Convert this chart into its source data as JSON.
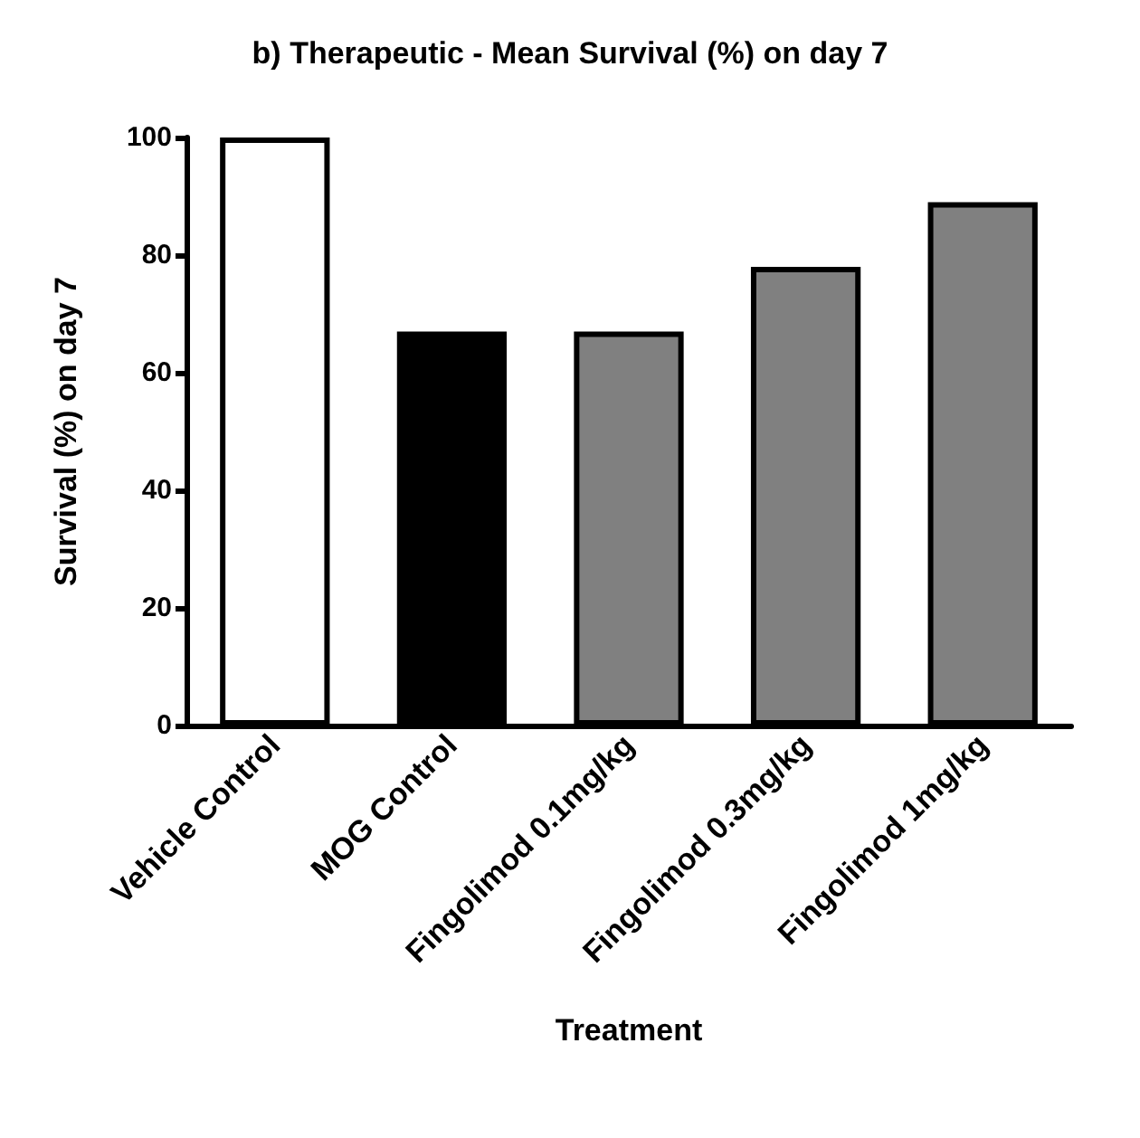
{
  "chart_data": {
    "type": "bar",
    "title": "b) Therapeutic - Mean Survival (%) on day 7",
    "xlabel": "Treatment",
    "ylabel": "Survival (%) on day 7",
    "categories": [
      "Vehicle Control",
      "MOG Control",
      "Fingolimod 0.1mg/kg",
      "Fingolimod 0.3mg/kg",
      "Fingolimod 1mg/kg"
    ],
    "values": [
      100,
      67,
      67,
      78,
      89
    ],
    "colors": [
      "#ffffff",
      "#000000",
      "#808080",
      "#808080",
      "#808080"
    ],
    "ylim": [
      0,
      100
    ],
    "yticks": [
      0,
      20,
      40,
      60,
      80,
      100
    ],
    "grid": false
  }
}
